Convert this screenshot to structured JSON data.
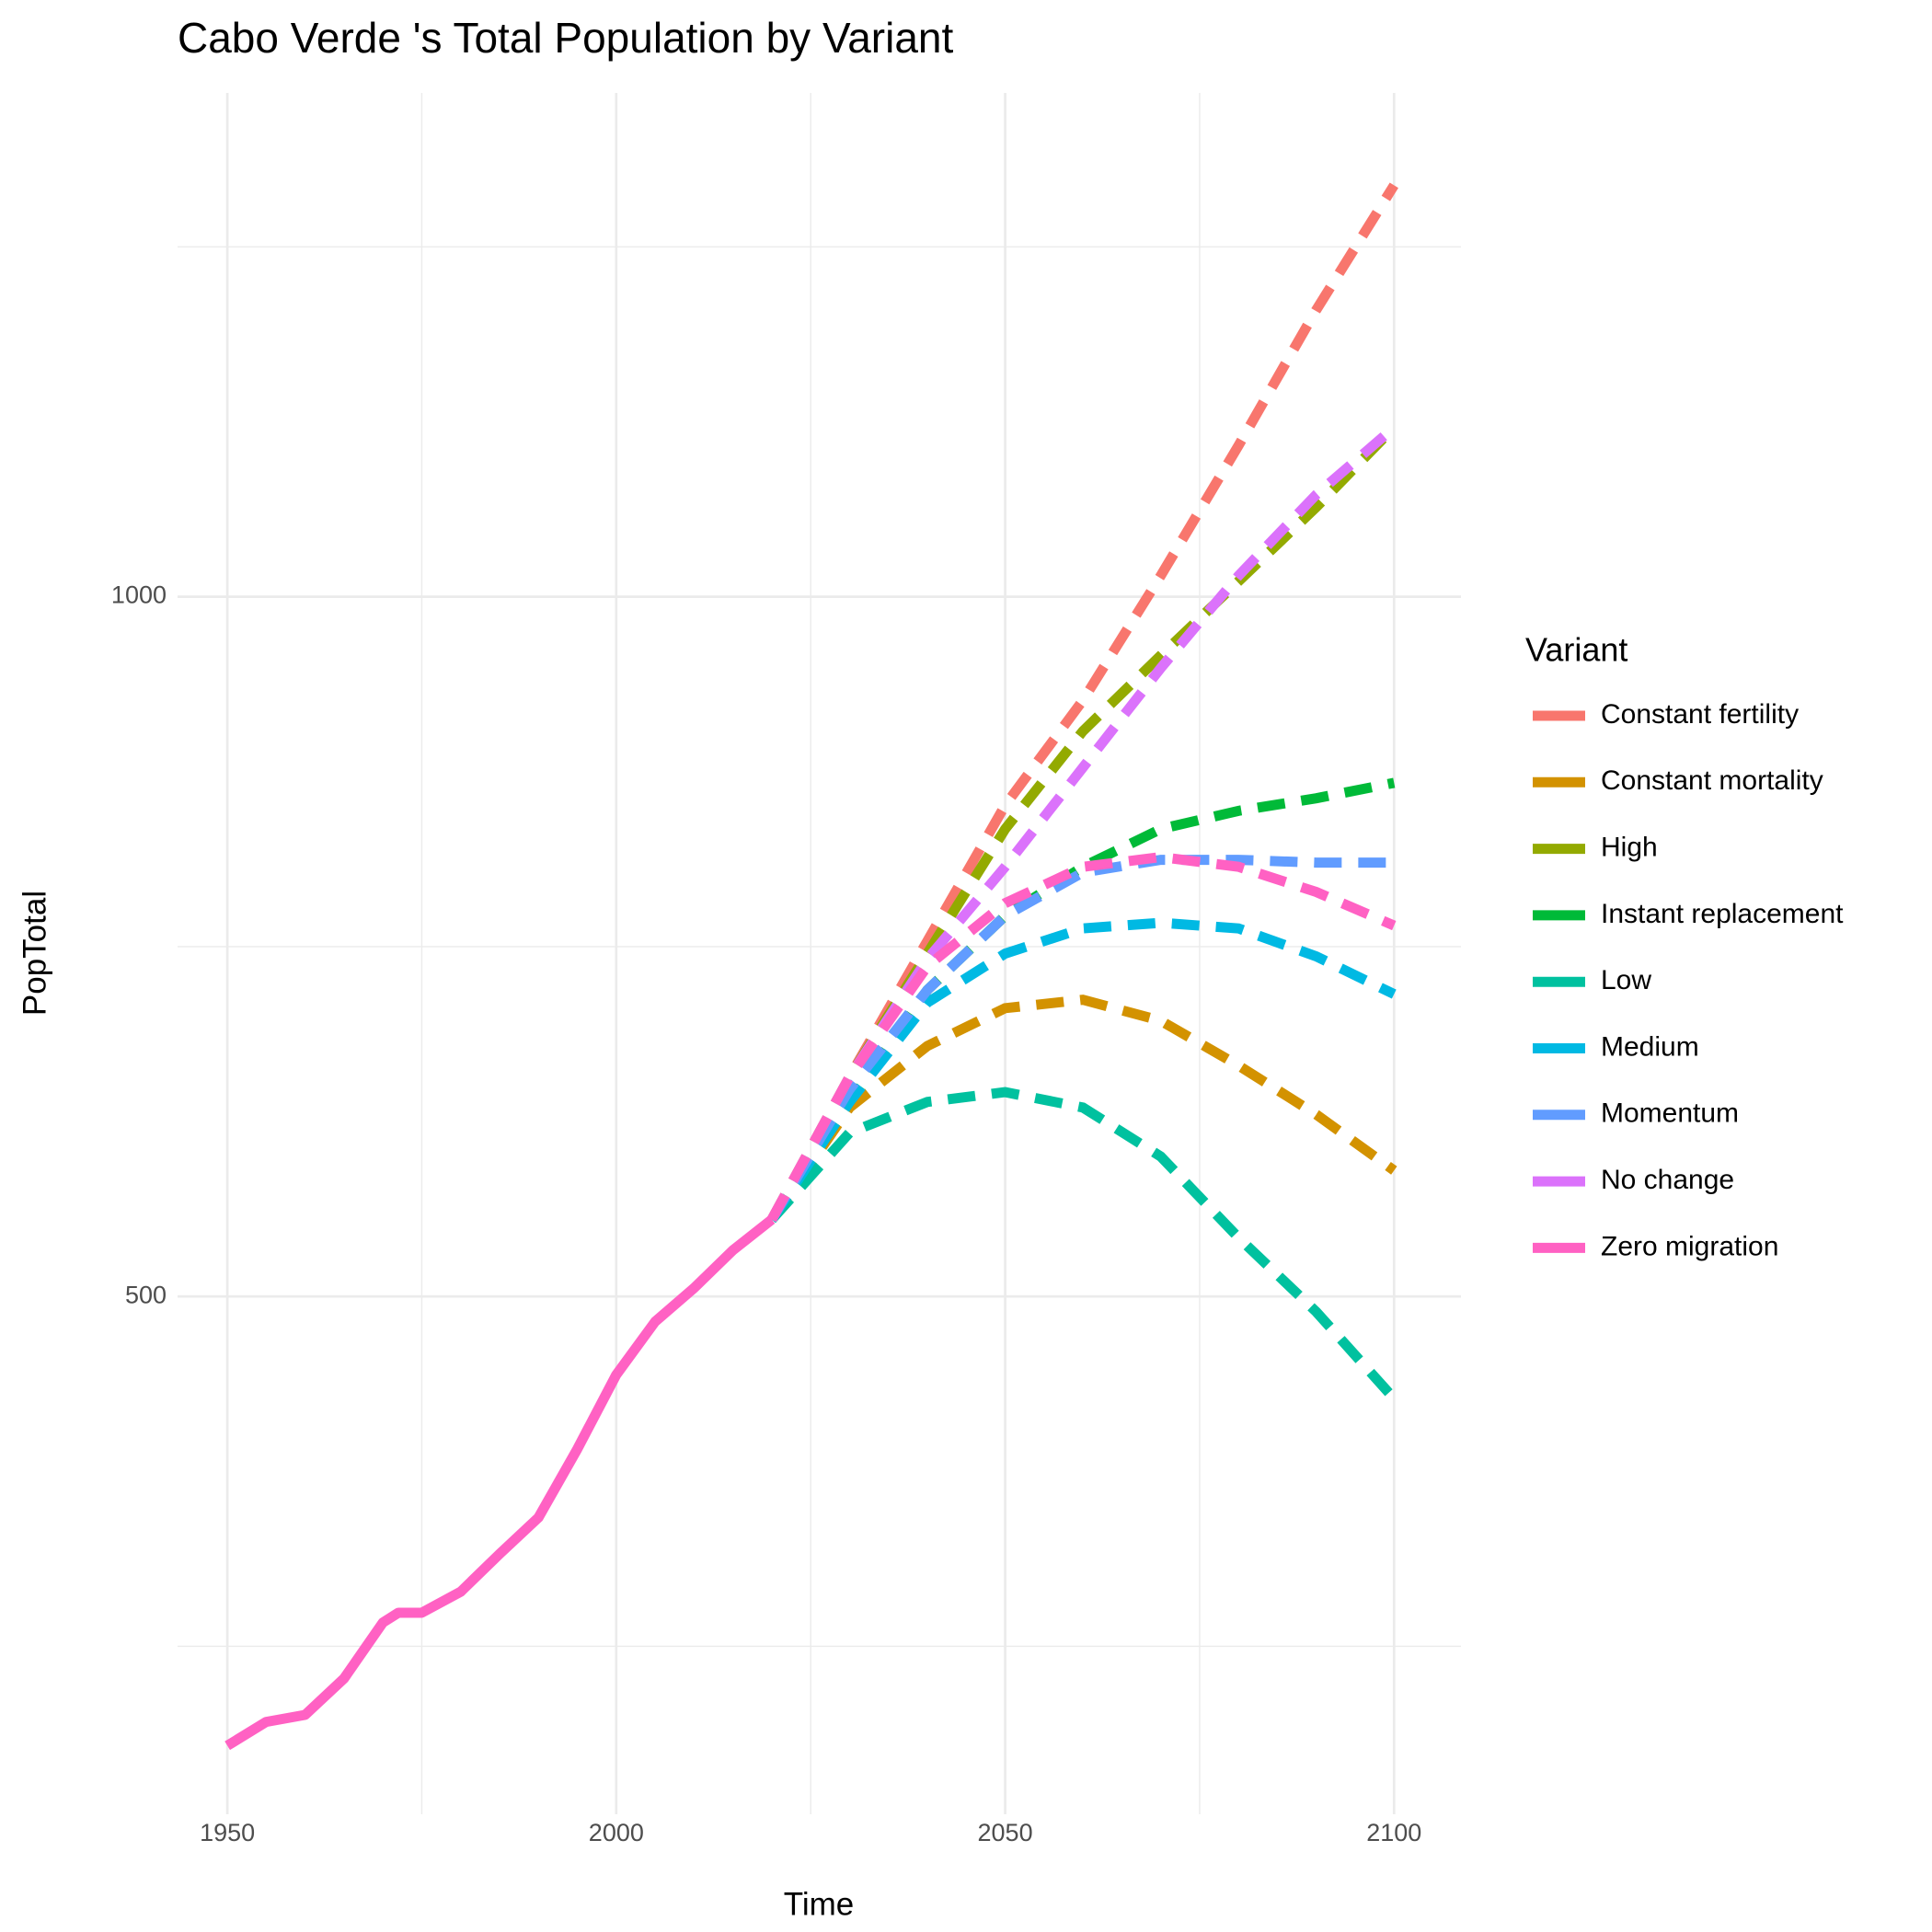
{
  "chart_data": {
    "type": "line",
    "title": "Cabo Verde 's Total Population by Variant",
    "x_label": "Time",
    "y_label": "PopTotal",
    "legend_title": "Variant",
    "xlim": [
      1943.6,
      2108.6
    ],
    "ylim": [
      130,
      1360
    ],
    "xticks": [
      1950,
      2000,
      2050,
      2100
    ],
    "xminorticks": [
      1975,
      2025,
      2075
    ],
    "yticks": [
      500,
      1000
    ],
    "yminorticks": [
      250,
      750,
      1250
    ],
    "grid": true,
    "legend_position": "right",
    "history": {
      "color": "#FF61C3",
      "x": [
        1950,
        1955,
        1960,
        1965,
        1970,
        1972,
        1975,
        1980,
        1985,
        1990,
        1995,
        2000,
        2005,
        2010,
        2015,
        2020
      ],
      "values": [
        179,
        196,
        201,
        227,
        267,
        274,
        274,
        289,
        316,
        342,
        391,
        444,
        482,
        506,
        533,
        555
      ]
    },
    "x": [
      2020,
      2030,
      2040,
      2050,
      2060,
      2070,
      2080,
      2090,
      2100
    ],
    "series": [
      {
        "name": "Constant fertility",
        "color": "#F8766D",
        "values": [
          555,
          657,
          754,
          851,
          926,
          1015,
          1108,
          1205,
          1294
        ]
      },
      {
        "name": "Constant mortality",
        "color": "#D39200",
        "values": [
          555,
          635,
          679,
          706,
          712,
          697,
          665,
          630,
          590
        ]
      },
      {
        "name": "High",
        "color": "#93AA00",
        "values": [
          555,
          657,
          745,
          834,
          904,
          958,
          1011,
          1064,
          1121
        ]
      },
      {
        "name": "Instant replacement",
        "color": "#00BA38",
        "values": [
          555,
          639,
          719,
          772,
          807,
          834,
          847,
          856,
          867
        ]
      },
      {
        "name": "Low",
        "color": "#00C19F",
        "values": [
          555,
          617,
          639,
          646,
          635,
          600,
          542,
          489,
          427
        ]
      },
      {
        "name": "Medium",
        "color": "#00B9E3",
        "values": [
          555,
          639,
          710,
          745,
          763,
          767,
          763,
          743,
          716
        ]
      },
      {
        "name": "Momentum",
        "color": "#619CFF",
        "values": [
          555,
          648,
          719,
          772,
          803,
          812,
          812,
          810,
          810
        ]
      },
      {
        "name": "No change",
        "color": "#DB72FB",
        "values": [
          555,
          657,
          741,
          807,
          878,
          949,
          1015,
          1073,
          1121
        ]
      },
      {
        "name": "Zero migration",
        "color": "#FF61C3",
        "values": [
          555,
          657,
          736,
          781,
          807,
          814,
          807,
          789,
          765
        ]
      }
    ]
  }
}
